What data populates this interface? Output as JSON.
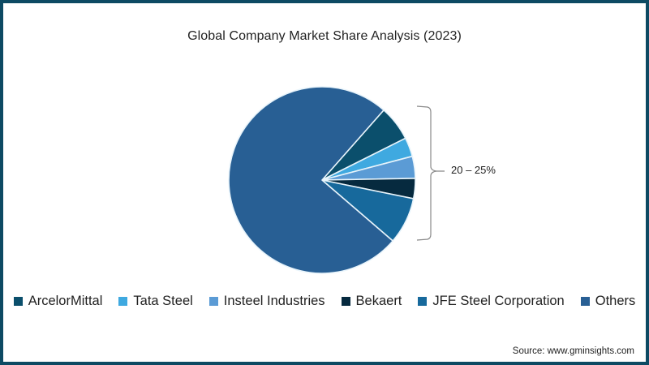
{
  "chart_data": {
    "type": "pie",
    "title": "Global Company Market Share Analysis (2023)",
    "categories": [
      "ArcelorMittal",
      "Tata Steel",
      "Insteel Industries",
      "Bekaert",
      "JFE Steel Corporation",
      "Others"
    ],
    "values": [
      6.1,
      3.3,
      3.8,
      3.5,
      8.1,
      75.2
    ],
    "unit": "%",
    "colors": [
      "#0b4f6c",
      "#3fa9e0",
      "#5b9bd5",
      "#062a3f",
      "#17699c",
      "#285f94"
    ],
    "annotation": {
      "text": "20 – 25%",
      "applies_to": [
        "ArcelorMittal",
        "Tata Steel",
        "Insteel Industries",
        "Bekaert",
        "JFE Steel Corporation"
      ]
    },
    "legend_position": "bottom",
    "source": "Source: www.gminsights.com"
  },
  "title": "Global Company Market Share Analysis (2023)",
  "legend": [
    {
      "label": "ArcelorMittal",
      "color": "#0b4f6c"
    },
    {
      "label": "Tata Steel",
      "color": "#3fa9e0"
    },
    {
      "label": "Insteel Industries",
      "color": "#5b9bd5"
    },
    {
      "label": "Bekaert",
      "color": "#062a3f"
    },
    {
      "label": "JFE Steel Corporation",
      "color": "#17699c"
    },
    {
      "label": "Others",
      "color": "#285f94"
    }
  ],
  "bracket_label": "20 – 25%",
  "source": "Source: www.gminsights.com",
  "colors": {
    "border": "#0d4a63",
    "slice_separator": "#e8f4fb"
  }
}
